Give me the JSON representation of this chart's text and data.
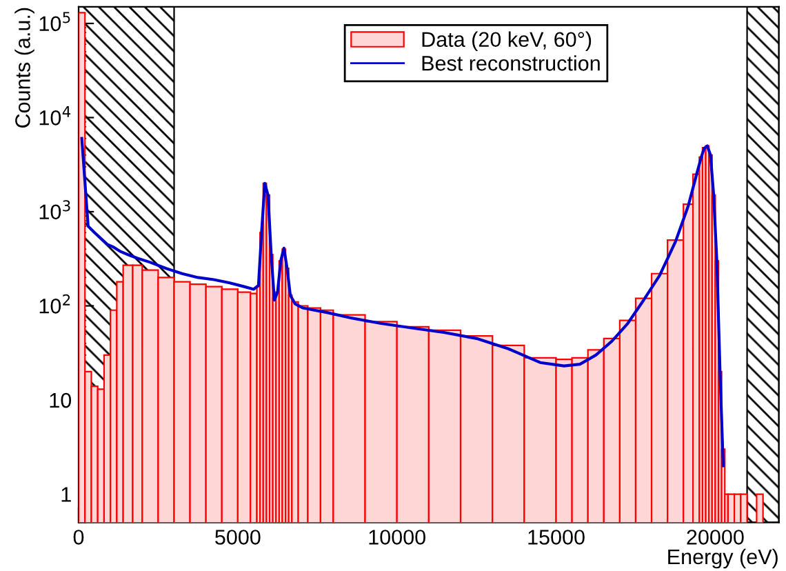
{
  "chart_data": {
    "type": "histogram",
    "xlabel": "Energy (eV)",
    "ylabel": "Counts (a.u.)",
    "log": "y",
    "xlim": [
      0,
      22000
    ],
    "xticks": [
      0,
      5000,
      10000,
      15000,
      20000
    ],
    "ylim": [
      0.5,
      150000
    ],
    "yticks": [
      1,
      10,
      {
        "value": 100,
        "label": "10$^{2}$"
      },
      {
        "value": 1000,
        "label": "10$^{3}$"
      },
      {
        "value": 10000,
        "label": "10$^{4}$"
      },
      {
        "value": 100000,
        "label": "10$^{5}$"
      }
    ],
    "legend": "top right",
    "grid": false,
    "bins": [
      0,
      200,
      400,
      600,
      800,
      1000,
      1200,
      1400,
      1700,
      2000,
      2500,
      3000,
      3500,
      4000,
      4500,
      5000,
      5400,
      5600,
      5700,
      5800,
      5900,
      6000,
      6100,
      6200,
      6300,
      6400,
      6500,
      6600,
      6700,
      6900,
      7200,
      7600,
      8000,
      9000,
      10000,
      11000,
      12000,
      13000,
      14000,
      15000,
      15500,
      16000,
      16500,
      17000,
      17500,
      18000,
      18500,
      19000,
      19300,
      19500,
      19600,
      19700,
      19800,
      19900,
      20000,
      20100,
      20200,
      20300,
      20400,
      20600,
      20800,
      21000,
      21300,
      21500
    ],
    "series": [
      {
        "name": "Data (20 keV, 60°)",
        "color": "#ff0000",
        "values": [
          130000,
          20,
          14,
          13,
          30,
          90,
          180,
          270,
          270,
          240,
          200,
          180,
          170,
          160,
          150,
          140,
          135,
          160,
          600,
          2000,
          1500,
          350,
          120,
          140,
          300,
          400,
          250,
          130,
          110,
          100,
          95,
          90,
          80,
          68,
          60,
          55,
          48,
          38,
          28,
          27,
          28,
          34,
          45,
          70,
          120,
          220,
          500,
          1200,
          2500,
          3800,
          4800,
          5000,
          4000,
          1500,
          300,
          20,
          3,
          1,
          1,
          1,
          1,
          null,
          1
        ]
      },
      {
        "name": "Best reconstruction",
        "color": "#0000cc",
        "type": "line",
        "x": [
          100,
          300,
          500,
          700,
          900,
          1100,
          1300,
          1550,
          1850,
          2250,
          2750,
          3250,
          3750,
          4250,
          4750,
          5200,
          5500,
          5650,
          5750,
          5850,
          5950,
          6050,
          6150,
          6250,
          6350,
          6450,
          6550,
          6650,
          6800,
          7050,
          7400,
          7800,
          8500,
          9500,
          10500,
          11500,
          12500,
          13500,
          14500,
          15250,
          15750,
          16250,
          16750,
          17250,
          17750,
          18250,
          18750,
          19150,
          19400,
          19550,
          19650,
          19750,
          19850,
          19950,
          20050,
          20150,
          20250
        ],
        "values": [
          6000,
          700,
          600,
          520,
          450,
          420,
          380,
          350,
          320,
          290,
          250,
          220,
          200,
          190,
          175,
          160,
          150,
          165,
          620,
          2000,
          1500,
          350,
          115,
          140,
          300,
          410,
          250,
          130,
          105,
          95,
          90,
          85,
          75,
          65,
          58,
          52,
          45,
          35,
          25,
          23,
          24,
          30,
          42,
          65,
          115,
          210,
          480,
          1150,
          2400,
          3700,
          4700,
          5000,
          4000,
          1500,
          300,
          20,
          2
        ]
      }
    ],
    "bands": [
      {
        "axis": "x",
        "from": 0,
        "to": 3000,
        "color": "#000000"
      },
      {
        "axis": "x",
        "from": 21000,
        "to": 22000,
        "color": "#000000"
      }
    ]
  }
}
